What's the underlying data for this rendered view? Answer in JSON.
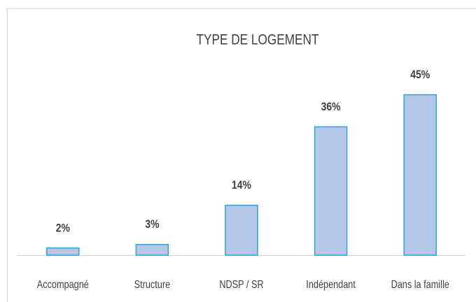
{
  "chart_data": {
    "type": "bar",
    "title": "TYPE DE LOGEMENT",
    "categories": [
      "Accompagné",
      "Structure",
      "NDSP / SR",
      "Indépendant",
      "Dans la famille"
    ],
    "values": [
      2,
      3,
      14,
      36,
      45
    ],
    "value_labels": [
      "2%",
      "3%",
      "14%",
      "36%",
      "45%"
    ],
    "color": "#b4c7e7",
    "edge_color": "#29a3dd"
  }
}
